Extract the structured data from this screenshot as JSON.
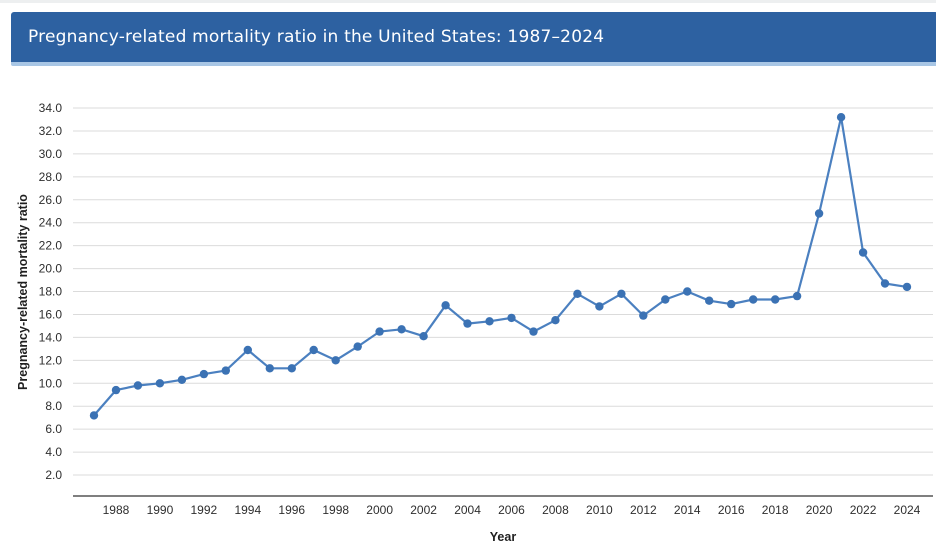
{
  "header": {
    "title": "Pregnancy-related mortality ratio in the United States: 1987–2024"
  },
  "colors": {
    "header_bg": "#2d61a1",
    "header_accent": "#a8c6e5",
    "line": "#4b80c0",
    "marker": "#3b72b4",
    "grid": "#dbdbdb",
    "axis_line": "#555555",
    "tick_text": "#2e2e2e",
    "axis_title_text": "#1f1f1f"
  },
  "chart_data": {
    "type": "line",
    "title": "Pregnancy-related mortality ratio in the United States: 1987–2024",
    "xlabel": "Year",
    "ylabel": "Pregnancy-related mortality ratio",
    "x": [
      1987,
      1988,
      1989,
      1990,
      1991,
      1992,
      1993,
      1994,
      1995,
      1996,
      1997,
      1998,
      1999,
      2000,
      2001,
      2002,
      2003,
      2004,
      2005,
      2006,
      2007,
      2008,
      2009,
      2010,
      2011,
      2012,
      2013,
      2014,
      2015,
      2016,
      2017,
      2018,
      2019,
      2020,
      2021,
      2022,
      2023,
      2024
    ],
    "series": [
      {
        "name": "Pregnancy-related mortality ratio",
        "values": [
          7.2,
          9.4,
          9.8,
          10.0,
          10.3,
          10.8,
          11.1,
          12.9,
          11.3,
          11.3,
          12.9,
          12.0,
          13.2,
          14.5,
          14.7,
          14.1,
          16.8,
          15.2,
          15.4,
          15.7,
          14.5,
          15.5,
          17.8,
          16.7,
          17.8,
          15.9,
          17.3,
          18.0,
          17.2,
          16.9,
          17.3,
          17.3,
          17.6,
          24.8,
          33.2,
          21.4,
          18.7,
          18.4
        ]
      }
    ],
    "xticks": [
      1988,
      1990,
      1992,
      1994,
      1996,
      1998,
      2000,
      2002,
      2004,
      2006,
      2008,
      2010,
      2012,
      2014,
      2016,
      2018,
      2020,
      2022,
      2024
    ],
    "yticks": [
      2.0,
      4.0,
      6.0,
      8.0,
      10.0,
      12.0,
      14.0,
      16.0,
      18.0,
      20.0,
      22.0,
      24.0,
      26.0,
      28.0,
      30.0,
      32.0,
      34.0
    ],
    "ytick_decimals": 1,
    "ylim": [
      0,
      34.5
    ],
    "grid": "horizontal",
    "legend": "none",
    "marker": "circle"
  }
}
